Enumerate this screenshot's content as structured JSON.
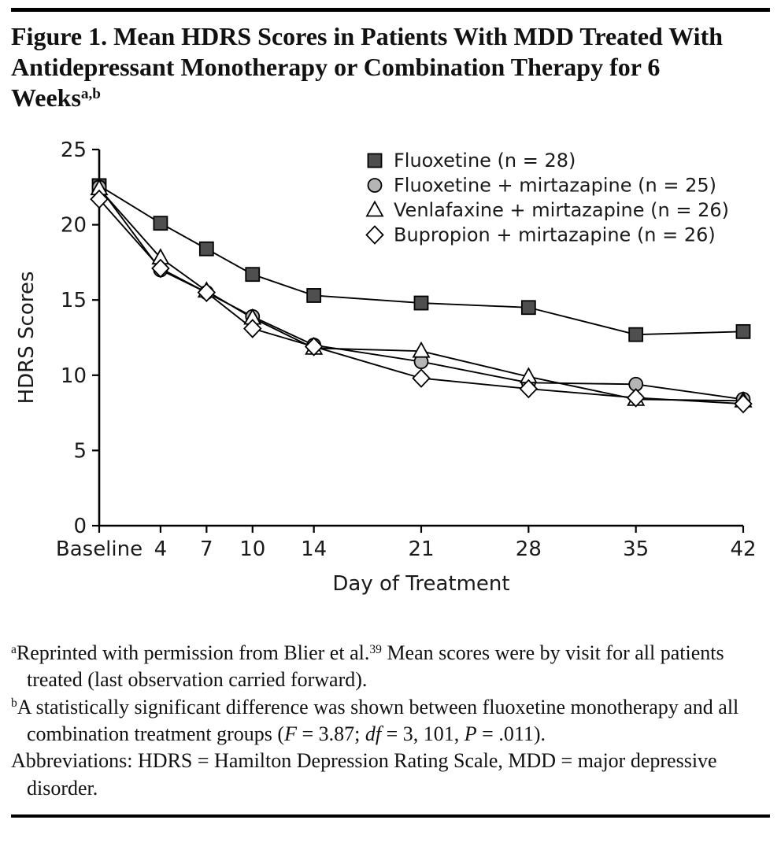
{
  "figure": {
    "title": "Figure 1. Mean HDRS Scores in Patients With MDD Treated With Antidepressant Monotherapy or Combination Therapy for 6 Weeks",
    "title_superscript": "a,b"
  },
  "chart_data": {
    "type": "line",
    "title": "",
    "xlabel": "Day of Treatment",
    "ylabel": "HDRS Scores",
    "ylim": [
      0,
      25
    ],
    "y_ticks": [
      0,
      5,
      10,
      15,
      20,
      25
    ],
    "x_values": [
      0,
      4,
      7,
      10,
      14,
      21,
      28,
      35,
      42
    ],
    "x_tick_labels": [
      "Baseline",
      "4",
      "7",
      "10",
      "14",
      "21",
      "28",
      "35",
      "42"
    ],
    "grid": false,
    "legend_position": "top-right",
    "line_color": "#000000",
    "series": [
      {
        "name": "Fluoxetine (n = 28)",
        "marker": "square",
        "fill": "#4f4f4f",
        "values": [
          22.6,
          20.1,
          18.4,
          16.7,
          15.3,
          14.8,
          14.5,
          12.7,
          12.9
        ]
      },
      {
        "name": "Fluoxetine + mirtazapine (n = 25)",
        "marker": "circle",
        "fill": "#b5b5b5",
        "values": [
          22.5,
          17.0,
          15.5,
          13.9,
          12.0,
          10.9,
          9.5,
          9.4,
          8.4
        ]
      },
      {
        "name": "Venlafaxine + mirtazapine (n = 26)",
        "marker": "triangle",
        "fill": "#ffffff",
        "values": [
          22.4,
          17.8,
          15.6,
          13.8,
          11.8,
          11.6,
          9.9,
          8.4,
          8.3
        ]
      },
      {
        "name": "Bupropion + mirtazapine (n = 26)",
        "marker": "diamond",
        "fill": "#ffffff",
        "values": [
          21.7,
          17.1,
          15.5,
          13.1,
          11.9,
          9.8,
          9.1,
          8.5,
          8.1
        ]
      }
    ]
  },
  "footnotes": {
    "a": {
      "marker": "a",
      "text1": "Reprinted with permission from Blier et al.",
      "ref": "39",
      "text2": " Mean scores were by visit for all patients treated (last observation carried forward)."
    },
    "b": {
      "marker": "b",
      "pre": "A statistically significant difference was shown between fluoxetine monotherapy and all combination treatment groups (",
      "f_sym": "F",
      "mid1": " = 3.87; ",
      "df_sym": "df",
      "mid2": " = 3, 101, ",
      "p_sym": "P",
      "end": " = .011)."
    },
    "abbrev": "Abbreviations: HDRS = Hamilton Depression Rating Scale, MDD = major depressive disorder."
  }
}
